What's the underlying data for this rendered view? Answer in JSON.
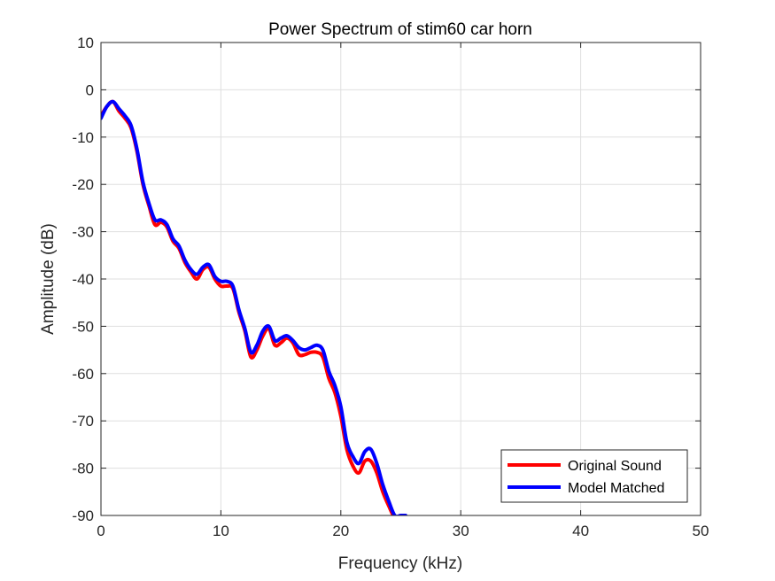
{
  "chart_data": {
    "type": "line",
    "title": "Power Spectrum of stim60 car horn",
    "xlabel": "Frequency (kHz)",
    "ylabel": "Amplitude (dB)",
    "xlim": [
      0,
      50
    ],
    "ylim": [
      -90,
      10
    ],
    "xticks": [
      0,
      10,
      20,
      30,
      40,
      50
    ],
    "yticks": [
      -90,
      -80,
      -70,
      -60,
      -50,
      -40,
      -30,
      -20,
      -10,
      0,
      10
    ],
    "grid": true,
    "legend_position": "bottom-right",
    "series": [
      {
        "name": "Original Sound",
        "color": "#ff0000",
        "x": [
          0,
          0.5,
          1.0,
          1.5,
          2.0,
          2.5,
          3.0,
          3.5,
          4.0,
          4.5,
          5.0,
          5.5,
          6.0,
          6.5,
          7.0,
          7.5,
          8.0,
          8.5,
          9.0,
          9.5,
          10.0,
          10.5,
          11.0,
          11.5,
          12.0,
          12.5,
          13.0,
          13.5,
          14.0,
          14.5,
          15.0,
          15.5,
          16.0,
          16.5,
          17.0,
          17.5,
          18.0,
          18.5,
          19.0,
          19.5,
          20.0,
          20.5,
          21.0,
          21.5,
          22.0,
          22.5,
          23.0,
          23.5,
          24.0,
          24.5,
          25.0,
          25.4
        ],
        "y": [
          -5.5,
          -3.5,
          -2.5,
          -4.5,
          -6.0,
          -8.0,
          -13.0,
          -20.0,
          -24.5,
          -28.5,
          -28.0,
          -29.0,
          -32.0,
          -33.5,
          -36.5,
          -38.5,
          -40.0,
          -38.0,
          -37.5,
          -40.0,
          -41.5,
          -41.5,
          -42.0,
          -47.0,
          -51.0,
          -56.5,
          -55.0,
          -52.0,
          -50.5,
          -54.0,
          -53.5,
          -52.5,
          -53.5,
          -56.0,
          -56.0,
          -55.5,
          -55.5,
          -56.5,
          -61.0,
          -64.0,
          -69.0,
          -76.0,
          -79.5,
          -81.0,
          -78.5,
          -78.5,
          -81.0,
          -85.0,
          -88.0,
          -90.5,
          -90.5,
          -90.5
        ]
      },
      {
        "name": "Model Matched",
        "color": "#0000ff",
        "x": [
          0,
          0.5,
          1.0,
          1.5,
          2.0,
          2.5,
          3.0,
          3.5,
          4.0,
          4.5,
          5.0,
          5.5,
          6.0,
          6.5,
          7.0,
          7.5,
          8.0,
          8.5,
          9.0,
          9.5,
          10.0,
          10.5,
          11.0,
          11.5,
          12.0,
          12.5,
          13.0,
          13.5,
          14.0,
          14.5,
          15.0,
          15.5,
          16.0,
          16.5,
          17.0,
          17.5,
          18.0,
          18.5,
          19.0,
          19.5,
          20.0,
          20.5,
          21.0,
          21.5,
          22.0,
          22.5,
          23.0,
          23.5,
          24.0,
          24.5,
          25.0,
          25.4
        ],
        "y": [
          -6.0,
          -3.5,
          -2.5,
          -4.0,
          -5.5,
          -7.5,
          -12.5,
          -19.5,
          -24.0,
          -27.5,
          -27.5,
          -28.5,
          -31.5,
          -33.0,
          -36.0,
          -38.0,
          -39.0,
          -37.5,
          -37.0,
          -39.5,
          -40.5,
          -40.5,
          -41.5,
          -46.5,
          -50.5,
          -55.5,
          -54.0,
          -51.0,
          -50.0,
          -53.0,
          -52.5,
          -52.0,
          -53.0,
          -54.5,
          -55.0,
          -54.5,
          -54.0,
          -55.0,
          -59.5,
          -62.5,
          -67.0,
          -74.5,
          -77.5,
          -79.0,
          -76.5,
          -76.0,
          -79.0,
          -83.5,
          -87.0,
          -90.0,
          -90.0,
          -90.0
        ]
      }
    ]
  }
}
